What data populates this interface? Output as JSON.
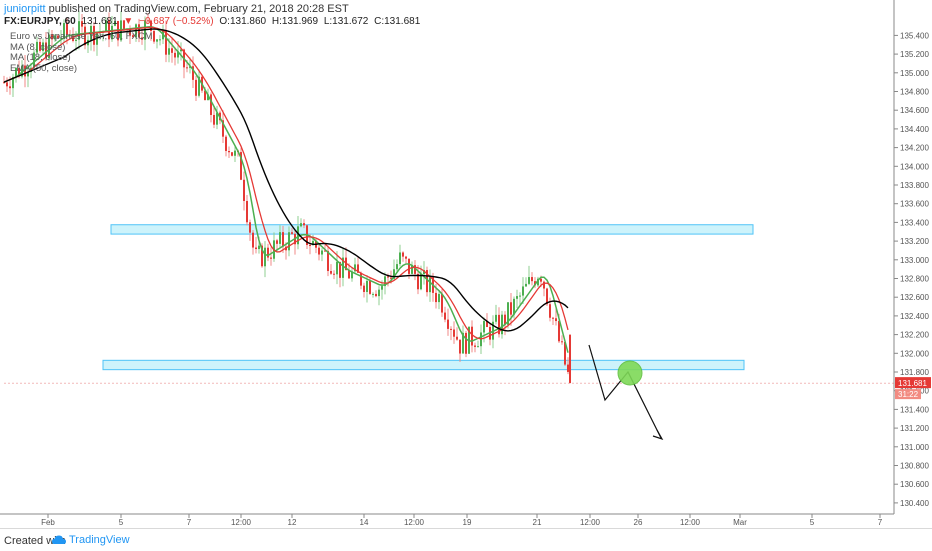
{
  "header": {
    "author": "juniorpitt",
    "published_text": "published on TradingView.com, February 21, 2018 20:28 EST"
  },
  "symbol_bar": {
    "symbol": "FX:EURJPY, 60",
    "last": "131.681",
    "change": "−0.687 (−0.52%)",
    "open": "O:131.860",
    "high": "H:131.969",
    "low": "L:131.672",
    "close": "C:131.681"
  },
  "legend": {
    "name": "Euro vs Japanese Yen, 60, FXCM",
    "lines": [
      "MA (8, close)",
      "MA (18, close)",
      "EMA (50, close)"
    ]
  },
  "footer": {
    "created_with": "Created with",
    "brand": "TradingView"
  },
  "colors": {
    "up_candle": "#4caf50",
    "down_candle": "#e53935",
    "ma_fast": "#e53935",
    "ma_mid": "#4caf50",
    "ema_slow": "#000000",
    "zone_fill": "#cdf3fb",
    "zone_stroke": "#4fc3f7",
    "marker": "#7ed957",
    "price_label": "#e53935"
  },
  "chart_data": {
    "type": "line",
    "title": "FX:EURJPY, 60",
    "xlabel": "",
    "ylabel": "",
    "ylim": [
      130.4,
      135.5
    ],
    "x_ticks": [
      "Feb",
      "5",
      "7",
      "12:00",
      "12",
      "14",
      "12:00",
      "19",
      "21",
      "12:00",
      "26",
      "12:00",
      "Mar",
      "5",
      "7"
    ],
    "y_ticks": [
      "135.400",
      "135.200",
      "135.000",
      "134.800",
      "134.600",
      "134.400",
      "134.200",
      "134.000",
      "133.800",
      "133.600",
      "133.400",
      "133.200",
      "133.000",
      "132.800",
      "132.600",
      "132.400",
      "132.200",
      "132.000",
      "131.800",
      "131.600",
      "131.400",
      "131.200",
      "131.000",
      "130.800",
      "130.600",
      "130.400"
    ],
    "price_series": {
      "name": "EURJPY",
      "x": [
        "Feb 1",
        "Feb 2",
        "Feb 5",
        "Feb 6",
        "Feb 7",
        "Feb 8",
        "Feb 9",
        "Feb 12",
        "Feb 13",
        "Feb 14",
        "Feb 15",
        "Feb 16",
        "Feb 19",
        "Feb 20",
        "Feb 21",
        "Feb 21 close"
      ],
      "values": [
        134.9,
        135.4,
        135.5,
        135.0,
        134.5,
        134.0,
        133.0,
        133.3,
        132.9,
        132.7,
        133.0,
        132.6,
        132.1,
        132.3,
        132.9,
        131.681
      ]
    },
    "support_zones": [
      {
        "low": 133.275,
        "high": 133.375
      },
      {
        "low": 131.825,
        "high": 131.925
      }
    ],
    "current_price": "131.681",
    "countdown": "31:22"
  }
}
